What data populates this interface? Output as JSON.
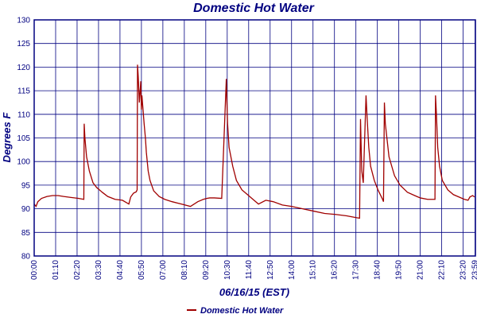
{
  "colors": {
    "series": "#a00000",
    "grid": "#000080",
    "text": "#000080",
    "background": "#ffffff"
  },
  "chart_data": {
    "type": "line",
    "title": "Domestic Hot Water",
    "xlabel": "06/16/15 (EST)",
    "ylabel": "Degrees F",
    "ylim": [
      80,
      130
    ],
    "yticks": [
      80,
      85,
      90,
      95,
      100,
      105,
      110,
      115,
      120,
      125,
      130
    ],
    "xlim_hours": [
      0,
      24
    ],
    "xtick_labels": [
      "00:00",
      "01:10",
      "02:20",
      "03:30",
      "04:40",
      "05:50",
      "07:00",
      "08:10",
      "09:20",
      "10:30",
      "11:40",
      "12:50",
      "14:00",
      "15:10",
      "16:20",
      "17:30",
      "18:40",
      "19:50",
      "21:00",
      "22:10",
      "23:20",
      "23:59"
    ],
    "grid": true,
    "legend_position": "bottom-center",
    "series": [
      {
        "name": "Domestic Hot Water",
        "x_hours": [
          0.0,
          0.1,
          0.2,
          0.4,
          0.7,
          1.0,
          1.3,
          1.6,
          2.0,
          2.4,
          2.7,
          2.72,
          2.76,
          2.85,
          3.0,
          3.2,
          3.4,
          3.7,
          4.0,
          4.4,
          4.8,
          5.15,
          5.25,
          5.4,
          5.55,
          5.6,
          5.62,
          5.66,
          5.72,
          5.8,
          5.83,
          5.86,
          5.92,
          5.98,
          6.05,
          6.1,
          6.15,
          6.2,
          6.3,
          6.5,
          6.8,
          7.1,
          7.5,
          8.0,
          8.5,
          8.9,
          9.2,
          9.4,
          9.55,
          9.8,
          10.2,
          10.45,
          10.48,
          10.52,
          10.6,
          10.8,
          11.0,
          11.3,
          11.6,
          11.9,
          12.2,
          12.6,
          13.0,
          13.5,
          14.0,
          14.6,
          15.2,
          15.8,
          16.4,
          17.0,
          17.4,
          17.7,
          17.75,
          17.78,
          17.82,
          17.9,
          18.05,
          18.1,
          18.2,
          18.3,
          18.5,
          18.7,
          18.95,
          19.0,
          19.05,
          19.1,
          19.3,
          19.6,
          19.9,
          20.3,
          20.7,
          21.0,
          21.4,
          21.8,
          21.83,
          21.88,
          21.95,
          22.05,
          22.2,
          22.5,
          22.8,
          23.1,
          23.4,
          23.6,
          23.7,
          23.85,
          23.95
        ],
        "values": [
          91,
          90.5,
          91.5,
          92.2,
          92.6,
          92.8,
          92.8,
          92.6,
          92.4,
          92.2,
          92.0,
          108,
          105,
          101,
          98,
          95.5,
          94.5,
          93.5,
          92.6,
          92.0,
          91.8,
          91.0,
          92.5,
          93.3,
          93.6,
          94,
          120.5,
          118,
          112.5,
          117,
          111,
          114,
          111,
          108,
          105,
          102,
          100,
          98,
          96,
          93.8,
          92.6,
          92.0,
          91.5,
          91.0,
          90.5,
          91.5,
          92.0,
          92.2,
          92.3,
          92.3,
          92.2,
          117.5,
          113,
          108,
          103,
          99,
          96,
          94,
          93,
          92,
          91,
          91.8,
          91.5,
          90.8,
          90.5,
          90.0,
          89.5,
          89.0,
          88.8,
          88.5,
          88.2,
          88,
          109,
          104,
          98,
          95.5,
          114,
          110,
          103,
          99,
          96,
          94,
          92,
          91.5,
          112.5,
          108,
          101,
          97,
          95,
          93.5,
          92.8,
          92.3,
          92.0,
          92,
          114,
          110,
          103,
          99,
          96,
          94,
          93,
          92.5,
          92.0,
          91.8,
          92.5,
          92.8,
          92.5
        ]
      }
    ]
  }
}
